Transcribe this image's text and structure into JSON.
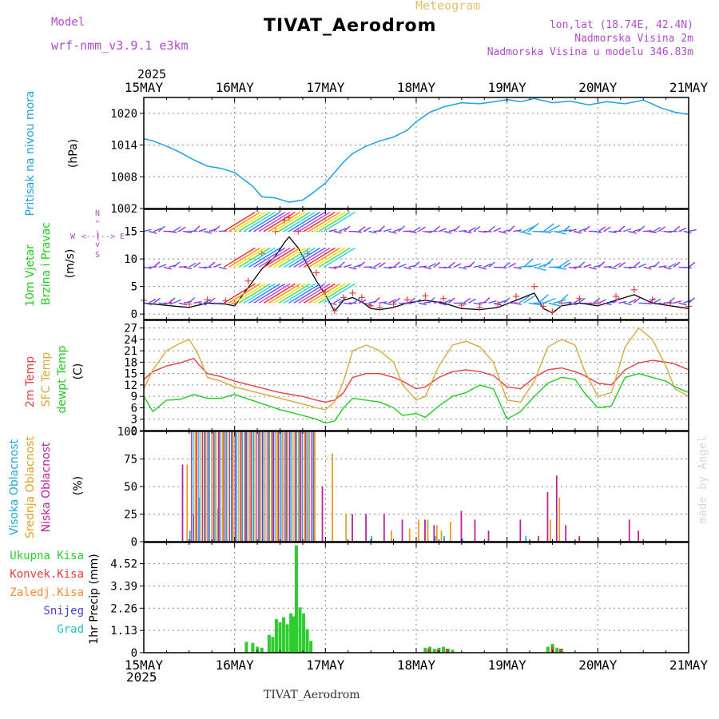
{
  "header": {
    "meteogram": "Meteogram",
    "title": "TIVAT_Aerodrom",
    "model_label": "Model",
    "model_name": "wrf-nmm_v3.9.1 e3km",
    "lonlat": "lon,lat (18.74E, 42.4N)",
    "elev": "Nadmorska Visina 2m",
    "elev_model": "Nadmorska Visina u modelu 346.83m",
    "year_top": "2025",
    "year_bottom": "2025",
    "footer": "TIVAT_Aerodrom",
    "madeby": "made by Angel"
  },
  "colors": {
    "pressure": "#1ea0e6",
    "temp2m": "#e8403c",
    "sfc": "#d9a83a",
    "dewp": "#1fcc1f",
    "purple": "#b24ccc",
    "rain": "#2ecc2e",
    "brown": "#b05a2a"
  },
  "chart_data": [
    {
      "type": "line",
      "panel": "pressure",
      "title": "Pritisak na nivou mora",
      "ylabel": "Pritisak na nivou mora (hPa)",
      "ylabel_parts": [
        "Pritisak na nivou mora",
        "(hPa)"
      ],
      "ylim": [
        1002,
        1023
      ],
      "yticks": [
        1002,
        1008,
        1014,
        1020
      ],
      "x_unit": "days since 15MAY",
      "xlim": [
        0,
        6
      ],
      "xtick_labels": [
        "15MAY",
        "16MAY",
        "17MAY",
        "18MAY",
        "19MAY",
        "20MAY",
        "21MAY"
      ],
      "x": [
        0,
        0.1,
        0.25,
        0.4,
        0.55,
        0.7,
        0.85,
        1.0,
        1.1,
        1.2,
        1.3,
        1.45,
        1.6,
        1.75,
        1.85,
        2.0,
        2.1,
        2.2,
        2.3,
        2.45,
        2.6,
        2.75,
        2.9,
        3.0,
        3.15,
        3.3,
        3.5,
        3.7,
        3.9,
        4.0,
        4.15,
        4.3,
        4.5,
        4.7,
        4.9,
        5.1,
        5.3,
        5.5,
        5.7,
        5.85,
        6.0
      ],
      "values": [
        1015.2,
        1014.8,
        1013.8,
        1012.6,
        1011.2,
        1010.0,
        1009.6,
        1008.8,
        1007.5,
        1006.2,
        1004.2,
        1004.0,
        1003.2,
        1003.6,
        1004.8,
        1006.8,
        1008.8,
        1010.8,
        1012.4,
        1013.8,
        1014.8,
        1015.5,
        1016.8,
        1018.4,
        1020.2,
        1021.2,
        1022.0,
        1021.8,
        1022.3,
        1022.6,
        1022.2,
        1022.8,
        1022.0,
        1022.3,
        1021.6,
        1022.2,
        1021.8,
        1022.5,
        1021.0,
        1020.2,
        1019.8
      ]
    },
    {
      "type": "line",
      "panel": "wind",
      "title": "10m Vjetar Brzina i Pravac",
      "ylabel": "10m Vjetar Brzina i Pravac (m/s)",
      "ylabel_parts": [
        "10m Vjetar",
        "Brzina i Pravac",
        "(m/s)"
      ],
      "compass": [
        "W",
        "<--|-->",
        "E"
      ],
      "compass_v": [
        "N",
        "^",
        "|",
        "v",
        "S"
      ],
      "ylim": [
        -1,
        19
      ],
      "yticks": [
        0,
        5,
        10,
        15
      ],
      "series": [
        {
          "name": "wind speed",
          "x": [
            0,
            0.3,
            0.5,
            0.7,
            0.9,
            1.0,
            1.15,
            1.3,
            1.45,
            1.55,
            1.6,
            1.7,
            1.8,
            1.9,
            2.0,
            2.1,
            2.2,
            2.3,
            2.4,
            2.5,
            2.6,
            2.75,
            2.9,
            3.1,
            3.3,
            3.5,
            3.7,
            3.9,
            4.1,
            4.3,
            4.4,
            4.5,
            4.6,
            4.8,
            5.0,
            5.2,
            5.4,
            5.6,
            5.8,
            6.0
          ],
          "values": [
            2,
            1.5,
            1.2,
            2.0,
            1.8,
            1.5,
            4.8,
            8.2,
            10.5,
            13.0,
            14.0,
            12.0,
            9.0,
            6.0,
            3.5,
            0.5,
            2.5,
            3.0,
            2.2,
            1.0,
            0.8,
            1.2,
            2.0,
            2.5,
            2.0,
            1.0,
            0.8,
            1.2,
            2.5,
            3.8,
            1.0,
            0.2,
            1.5,
            2.0,
            1.5,
            2.5,
            3.5,
            2.0,
            1.5,
            1.0
          ]
        },
        {
          "name": "wind gust",
          "x": [
            0,
            0.3,
            0.5,
            0.7,
            0.9,
            1.0,
            1.15,
            1.3,
            1.45,
            1.55,
            1.6,
            1.7,
            1.8,
            1.9,
            2.0,
            2.1,
            2.2,
            2.3,
            2.4,
            2.5,
            2.6,
            2.75,
            2.9,
            3.1,
            3.3,
            3.5,
            3.7,
            3.9,
            4.1,
            4.3,
            4.4,
            4.5,
            4.6,
            4.8,
            5.0,
            5.2,
            5.4,
            5.6,
            5.8,
            6.0
          ],
          "values": [
            2.5,
            2.0,
            1.8,
            2.6,
            2.4,
            2.0,
            6.0,
            11.0,
            15.0,
            17.0,
            17.5,
            15.0,
            11.0,
            7.5,
            4.0,
            0.6,
            3.0,
            3.8,
            3.0,
            1.5,
            1.2,
            1.8,
            2.6,
            3.3,
            2.8,
            1.6,
            1.2,
            1.8,
            3.2,
            5.0,
            1.4,
            0.4,
            2.0,
            2.8,
            2.0,
            3.2,
            4.4,
            2.6,
            2.0,
            1.4
          ]
        },
        {
          "name": "barb row high",
          "y_level": 15
        },
        {
          "name": "barb row mid",
          "y_level": 8.5
        },
        {
          "name": "barb row low",
          "y_level": 2
        }
      ]
    },
    {
      "type": "line",
      "panel": "temperature",
      "ylabel_parts": [
        "2m Temp",
        "SFC Temp",
        "dewpt Temp",
        "(C)"
      ],
      "ylim": [
        0,
        29
      ],
      "yticks": [
        0,
        3,
        6,
        9,
        12,
        15,
        18,
        21,
        24,
        27
      ],
      "series": [
        {
          "name": "2m Temp",
          "x": [
            0,
            0.1,
            0.25,
            0.4,
            0.55,
            0.6,
            0.7,
            0.85,
            1.0,
            1.25,
            1.5,
            1.75,
            1.9,
            2.0,
            2.1,
            2.2,
            2.3,
            2.45,
            2.6,
            2.75,
            2.85,
            3.0,
            3.1,
            3.25,
            3.4,
            3.55,
            3.7,
            3.85,
            4.0,
            4.15,
            4.3,
            4.45,
            4.6,
            4.75,
            4.85,
            5.0,
            5.15,
            5.3,
            5.45,
            5.6,
            5.75,
            5.85,
            6.0
          ],
          "values": [
            13.5,
            15.5,
            17.0,
            17.8,
            19.0,
            17.5,
            15.0,
            14.2,
            13.0,
            11.5,
            10.0,
            9.0,
            8.0,
            7.5,
            8.0,
            10.0,
            14.0,
            15.0,
            15.0,
            14.0,
            13.0,
            11.0,
            11.5,
            14.0,
            15.5,
            16.0,
            15.5,
            14.5,
            11.5,
            11.0,
            14.0,
            16.0,
            16.5,
            15.5,
            14.5,
            12.5,
            12.0,
            16.0,
            17.8,
            18.5,
            18.0,
            17.5,
            16.0
          ]
        },
        {
          "name": "SFC Temp",
          "x": [
            0,
            0.1,
            0.25,
            0.4,
            0.5,
            0.6,
            0.7,
            0.85,
            1.0,
            1.25,
            1.5,
            1.75,
            1.9,
            2.0,
            2.1,
            2.2,
            2.3,
            2.45,
            2.6,
            2.75,
            2.85,
            3.0,
            3.1,
            3.25,
            3.4,
            3.55,
            3.7,
            3.85,
            4.0,
            4.15,
            4.3,
            4.45,
            4.6,
            4.75,
            4.85,
            5.0,
            5.15,
            5.3,
            5.45,
            5.6,
            5.75,
            5.85,
            6.0
          ],
          "values": [
            11.0,
            16.0,
            21.0,
            23.0,
            24.0,
            20.0,
            14.0,
            13.0,
            11.5,
            10.0,
            8.5,
            7.0,
            6.0,
            5.5,
            7.5,
            13.0,
            21.0,
            22.5,
            21.0,
            18.0,
            12.0,
            8.0,
            9.0,
            17.0,
            22.5,
            23.5,
            22.0,
            18.0,
            8.0,
            7.5,
            13.0,
            22.0,
            24.0,
            22.5,
            16.0,
            9.0,
            10.0,
            22.0,
            27.0,
            24.0,
            17.0,
            11.0,
            9.0
          ]
        },
        {
          "name": "dewpt Temp",
          "x": [
            0,
            0.1,
            0.25,
            0.4,
            0.55,
            0.7,
            0.85,
            1.0,
            1.25,
            1.5,
            1.75,
            1.9,
            2.0,
            2.1,
            2.2,
            2.3,
            2.45,
            2.6,
            2.75,
            2.85,
            3.0,
            3.1,
            3.25,
            3.4,
            3.55,
            3.7,
            3.85,
            4.0,
            4.15,
            4.3,
            4.45,
            4.6,
            4.75,
            4.85,
            5.0,
            5.15,
            5.3,
            5.45,
            5.6,
            5.75,
            5.85,
            6.0
          ],
          "values": [
            9.0,
            5.0,
            8.0,
            8.2,
            9.5,
            8.5,
            8.5,
            9.5,
            7.5,
            5.5,
            4.0,
            3.0,
            2.0,
            2.5,
            6.0,
            8.5,
            8.0,
            7.5,
            6.0,
            4.0,
            4.5,
            3.5,
            6.5,
            9.0,
            10.0,
            12.0,
            11.0,
            3.0,
            5.0,
            9.0,
            12.5,
            14.0,
            13.5,
            10.0,
            6.0,
            6.5,
            14.0,
            15.0,
            14.0,
            13.0,
            11.5,
            10.0
          ]
        }
      ]
    },
    {
      "type": "bar",
      "panel": "clouds",
      "ylabel_parts": [
        "Visoka Oblacnost",
        "Srednja Oblacnost",
        "Niska Oblacnost",
        "(%)"
      ],
      "ylim": [
        0,
        100
      ],
      "yticks": [
        0,
        25,
        50,
        75,
        100
      ],
      "series": [
        {
          "name": "Visoka Oblacnost",
          "x": [
            0.5,
            0.6,
            0.7,
            0.8,
            0.9,
            1.0,
            1.1,
            1.2,
            1.3,
            1.4,
            1.5,
            1.6,
            1.7,
            1.8,
            2.5,
            3.2,
            3.3,
            3.5,
            4.2,
            5.0
          ],
          "values": [
            10,
            40,
            100,
            30,
            100,
            100,
            100,
            100,
            100,
            100,
            100,
            100,
            100,
            100,
            5,
            5,
            5,
            3,
            5,
            3
          ]
        },
        {
          "name": "Srednja Oblacnost",
          "x": [
            0.45,
            0.55,
            0.65,
            0.75,
            0.85,
            0.95,
            1.05,
            1.15,
            1.25,
            1.35,
            1.45,
            1.55,
            1.65,
            1.75,
            1.85,
            2.05,
            2.2,
            2.7,
            2.9,
            3.0,
            3.1,
            3.2,
            3.25,
            3.35,
            4.45,
            4.55
          ],
          "values": [
            70,
            100,
            100,
            100,
            100,
            100,
            100,
            100,
            100,
            100,
            100,
            100,
            100,
            100,
            100,
            80,
            25,
            10,
            12,
            20,
            20,
            15,
            10,
            18,
            20,
            40
          ]
        },
        {
          "name": "Niska Oblacnost",
          "x": [
            0.38,
            0.5,
            0.62,
            0.78,
            0.92,
            1.08,
            1.22,
            1.38,
            1.52,
            1.68,
            1.82,
            1.92,
            2.25,
            2.4,
            2.6,
            2.8,
            3.05,
            3.15,
            3.45,
            3.6,
            3.75,
            4.1,
            4.3,
            4.4,
            4.5,
            4.6,
            4.75,
            5.3,
            5.4
          ],
          "values": [
            70,
            25,
            100,
            100,
            100,
            100,
            100,
            100,
            100,
            100,
            100,
            50,
            25,
            25,
            25,
            20,
            20,
            15,
            28,
            20,
            10,
            20,
            5,
            45,
            60,
            15,
            5,
            20,
            10
          ]
        }
      ]
    },
    {
      "type": "bar",
      "panel": "precipitation",
      "ylabel_parts": [
        "1hr Precip (mm)"
      ],
      "legend": [
        "Ukupna Kisa",
        "Konvek.Kisa",
        "Zaledj.Kisa",
        "Snijeg",
        "Grad"
      ],
      "ylim": [
        0,
        5.6
      ],
      "yticks": [
        0,
        1.13,
        2.26,
        3.39,
        4.52
      ],
      "series": [
        {
          "name": "Ukupna Kisa",
          "x": [
            1.13,
            1.2,
            1.25,
            1.3,
            1.38,
            1.42,
            1.46,
            1.5,
            1.54,
            1.58,
            1.62,
            1.65,
            1.68,
            1.72,
            1.76,
            1.8,
            1.84,
            3.1,
            3.15,
            3.2,
            3.25,
            3.3,
            3.35,
            3.4,
            4.45,
            4.5,
            4.55,
            4.6
          ],
          "values": [
            0.55,
            0.5,
            0.3,
            0.25,
            0.9,
            0.8,
            1.7,
            1.55,
            1.8,
            1.45,
            2.0,
            1.85,
            5.45,
            2.3,
            2.0,
            1.2,
            0.6,
            0.25,
            0.3,
            0.2,
            0.25,
            0.3,
            0.2,
            0.15,
            0.3,
            0.45,
            0.25,
            0.2
          ]
        },
        {
          "name": "Konvek.Kisa",
          "x": [
            3.12,
            3.22,
            3.32,
            4.48,
            4.57
          ],
          "values": [
            0.2,
            0.15,
            0.2,
            0.3,
            0.2
          ]
        }
      ]
    }
  ]
}
